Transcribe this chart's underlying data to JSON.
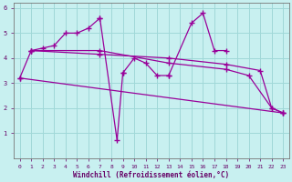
{
  "background_color": "#c8f0f0",
  "grid_color": "#a0d8d8",
  "line_color": "#990099",
  "marker": "+",
  "xlabel": "Windchill (Refroidissement éolien,°C)",
  "xlim": [
    -0.5,
    23.5
  ],
  "ylim": [
    0,
    6.2
  ],
  "xticks": [
    0,
    1,
    2,
    3,
    4,
    5,
    6,
    7,
    8,
    9,
    10,
    11,
    12,
    13,
    14,
    15,
    16,
    17,
    18,
    19,
    20,
    21,
    22,
    23
  ],
  "yticks": [
    1,
    2,
    3,
    4,
    5,
    6
  ],
  "series": [
    {
      "x": [
        0,
        1,
        2,
        3,
        4,
        5,
        6,
        7
      ],
      "y": [
        3.2,
        4.3,
        4.4,
        4.5,
        5.0,
        5.0,
        5.2,
        5.6
      ]
    },
    {
      "x": [
        7,
        8.5,
        9
      ],
      "y": [
        5.6,
        0.7,
        3.4
      ]
    },
    {
      "x": [
        9,
        10,
        11,
        12,
        13
      ],
      "y": [
        3.4,
        4.0,
        3.8,
        3.3,
        3.3
      ]
    },
    {
      "x": [
        13,
        15,
        16,
        17,
        18
      ],
      "y": [
        3.3,
        5.4,
        5.8,
        4.3,
        4.3
      ]
    },
    {
      "x": [
        0,
        23
      ],
      "y": [
        3.2,
        1.8
      ]
    },
    {
      "x": [
        1,
        7,
        13,
        18,
        21,
        22,
        23
      ],
      "y": [
        4.3,
        4.15,
        4.0,
        3.75,
        3.5,
        2.0,
        1.8
      ]
    },
    {
      "x": [
        1,
        7,
        13,
        18,
        20,
        22,
        23
      ],
      "y": [
        4.3,
        4.3,
        3.8,
        3.55,
        3.3,
        2.0,
        1.8
      ]
    }
  ]
}
